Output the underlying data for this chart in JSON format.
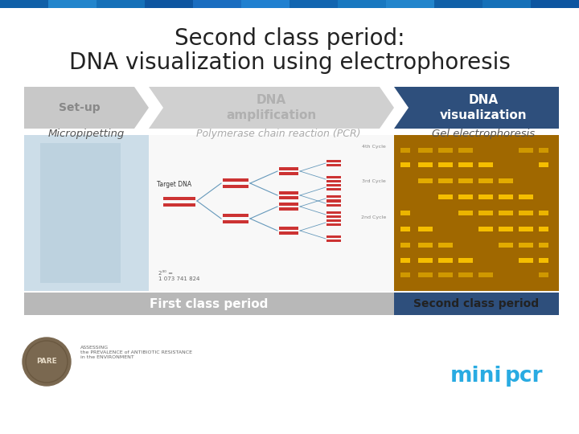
{
  "title_line1": "Second class period:",
  "title_line2": "DNA visualization using electrophoresis",
  "title_fontsize": 20,
  "title_color": "#222222",
  "bg_color": "#ffffff",
  "arrow_labels": [
    "Set-up",
    "DNA\namplification",
    "DNA\nvisualization"
  ],
  "arrow_colors": [
    "#c8c8c8",
    "#d0d0d0",
    "#2e4f7c"
  ],
  "arrow_text_colors": [
    "#888888",
    "#b0b0b0",
    "#ffffff"
  ],
  "sub_labels": [
    "Micropipetting",
    "Polymerase chain reaction (PCR)",
    "Gel electrophoresis"
  ],
  "sub_label_colors": [
    "#555555",
    "#aaaaaa",
    "#555555"
  ],
  "bottom_bar_left_color": "#b8b8b8",
  "bottom_bar_right_color": "#2e4f7c",
  "bottom_bar_left_text": "First class period",
  "bottom_bar_right_text": "Second class period",
  "bottom_text_color_left": "#ffffff",
  "bottom_text_color_right": "#222222",
  "minipcr_color": "#29abe2",
  "top_bar_segments": [
    "#1060a8",
    "#2285cc",
    "#1570b8",
    "#0d55a0",
    "#1a6dc0",
    "#2080d0",
    "#1265b0",
    "#1878c0",
    "#2285cc",
    "#1060a8",
    "#1570b8",
    "#0d55a0"
  ],
  "gel_bg_color": "#a06800",
  "gel_band_color": "#ffc800",
  "pcr_bg_color": "#f8f8f8",
  "left_img_color": "#ccdde8",
  "left_img_detail": "#b0c8d8"
}
